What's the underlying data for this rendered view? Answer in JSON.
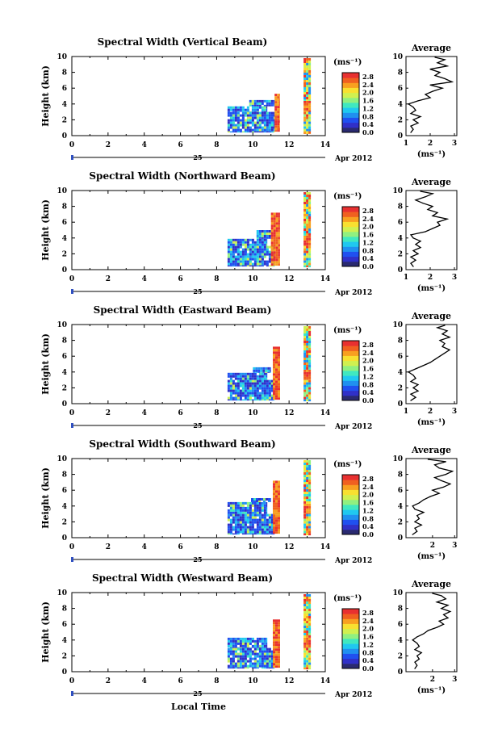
{
  "colors": {
    "scale": [
      "#2a2a70",
      "#3030c8",
      "#2050f0",
      "#2090f0",
      "#20c8f0",
      "#40e8c0",
      "#90f080",
      "#d0f050",
      "#f8e030",
      "#f8a020",
      "#f06020",
      "#e83030"
    ],
    "axis": "#000000",
    "date_marker": "#3050c0"
  },
  "footer": {
    "xaxis_title": "Local Time"
  },
  "chart_data": [
    {
      "type": "heatmap",
      "title": "Spectral Width (Vertical Beam)",
      "ylabel": "Height (km)",
      "xlabel": "Local Time",
      "x_ticks": [
        "0",
        "2",
        "4",
        "6",
        "8",
        "10",
        "12",
        "14"
      ],
      "y_ticks": [
        "0",
        "2",
        "4",
        "6",
        "8",
        "10"
      ],
      "xlim": [
        0,
        14
      ],
      "ylim": [
        0,
        10
      ],
      "date_day": "25",
      "date_month_year": "Apr 2012",
      "colorbar": {
        "unit": "(ms⁻¹)",
        "ticks": [
          "0.0",
          "0.4",
          "0.8",
          "1.2",
          "1.6",
          "2.0",
          "2.4",
          "2.8"
        ],
        "range": [
          0,
          3.0
        ]
      },
      "coverage": [
        {
          "x": [
            8.6,
            11.2
          ],
          "y": [
            0.4,
            3.0
          ],
          "level": "low"
        },
        {
          "x": [
            8.6,
            10.8
          ],
          "y": [
            3.0,
            3.7
          ],
          "level": "low"
        },
        {
          "x": [
            9.8,
            11.2
          ],
          "y": [
            3.7,
            4.5
          ],
          "level": "low"
        },
        {
          "x": [
            11.2,
            11.5
          ],
          "y": [
            0.5,
            5.3
          ],
          "level": "high"
        },
        {
          "x": [
            12.8,
            13.2
          ],
          "y": [
            0.2,
            3.0
          ],
          "level": "mixed"
        },
        {
          "x": [
            12.8,
            13.2
          ],
          "y": [
            3.0,
            4.4
          ],
          "level": "high"
        },
        {
          "x": [
            12.8,
            13.2
          ],
          "y": [
            4.4,
            9.8
          ],
          "level": "mixed"
        }
      ],
      "average_profile": {
        "title": "Average",
        "xlabel": "(ms⁻¹)",
        "x_ticks": [
          "1",
          "2",
          "3"
        ],
        "xlim": [
          1,
          3.1
        ],
        "y_ticks": [
          "0",
          "2",
          "4",
          "6",
          "8",
          "10"
        ],
        "ylim": [
          0,
          10
        ],
        "height": [
          0.4,
          0.8,
          1.2,
          1.6,
          2.0,
          2.4,
          2.8,
          3.2,
          3.6,
          4.0,
          4.4,
          4.8,
          5.2,
          5.6,
          6.0,
          6.4,
          6.8,
          7.2,
          7.6,
          8.0,
          8.4,
          8.8,
          9.2,
          9.6,
          9.9
        ],
        "value": [
          1.2,
          1.3,
          1.2,
          1.5,
          1.3,
          1.6,
          1.2,
          1.4,
          1.3,
          1.1,
          1.5,
          2.0,
          1.8,
          2.1,
          2.5,
          2.0,
          2.9,
          2.6,
          2.2,
          2.4,
          2.0,
          2.7,
          2.3,
          2.6,
          2.2
        ]
      }
    },
    {
      "type": "heatmap",
      "title": "Spectral Width (Northward Beam)",
      "ylabel": "Height (km)",
      "xlabel": "Local Time",
      "x_ticks": [
        "0",
        "2",
        "4",
        "6",
        "8",
        "10",
        "12",
        "14"
      ],
      "y_ticks": [
        "0",
        "2",
        "4",
        "6",
        "8",
        "10"
      ],
      "xlim": [
        0,
        14
      ],
      "ylim": [
        0,
        10
      ],
      "date_day": "25",
      "date_month_year": "Apr 2012",
      "colorbar": {
        "unit": "(ms⁻¹)",
        "ticks": [
          "0.0",
          "0.4",
          "0.8",
          "1.2",
          "1.6",
          "2.0",
          "2.4",
          "2.8"
        ],
        "range": [
          0,
          3.0
        ]
      },
      "coverage": [
        {
          "x": [
            8.6,
            11.2
          ],
          "y": [
            0.4,
            3.0
          ],
          "level": "low"
        },
        {
          "x": [
            8.6,
            10.8
          ],
          "y": [
            3.0,
            3.9
          ],
          "level": "low"
        },
        {
          "x": [
            10.2,
            11.0
          ],
          "y": [
            3.9,
            5.0
          ],
          "level": "low"
        },
        {
          "x": [
            11.0,
            11.5
          ],
          "y": [
            0.5,
            7.2
          ],
          "level": "high"
        },
        {
          "x": [
            12.8,
            13.2
          ],
          "y": [
            0.3,
            3.0
          ],
          "level": "mixed"
        },
        {
          "x": [
            12.8,
            13.2
          ],
          "y": [
            3.0,
            4.3
          ],
          "level": "high"
        },
        {
          "x": [
            12.8,
            13.2
          ],
          "y": [
            4.3,
            9.8
          ],
          "level": "mixed"
        }
      ],
      "average_profile": {
        "title": "Average",
        "xlabel": "(ms⁻¹)",
        "x_ticks": [
          "1",
          "2",
          "3"
        ],
        "xlim": [
          1,
          3.1
        ],
        "y_ticks": [
          "0",
          "2",
          "4",
          "6",
          "8",
          "10"
        ],
        "ylim": [
          0,
          10
        ],
        "height": [
          0.4,
          0.8,
          1.2,
          1.6,
          2.0,
          2.4,
          2.8,
          3.2,
          3.6,
          4.0,
          4.4,
          4.8,
          5.2,
          5.6,
          6.0,
          6.4,
          6.8,
          7.2,
          7.6,
          8.0,
          8.4,
          8.8,
          9.2,
          9.6,
          9.9
        ],
        "value": [
          1.3,
          1.2,
          1.4,
          1.2,
          1.5,
          1.3,
          1.6,
          1.4,
          1.6,
          1.3,
          1.2,
          1.8,
          2.1,
          2.4,
          2.3,
          2.7,
          2.1,
          2.3,
          1.9,
          2.1,
          1.7,
          1.4,
          1.8,
          2.1,
          1.6
        ]
      }
    },
    {
      "type": "heatmap",
      "title": "Spectral Width (Eastward Beam)",
      "ylabel": "Height (km)",
      "xlabel": "Local Time",
      "x_ticks": [
        "0",
        "2",
        "4",
        "6",
        "8",
        "10",
        "12",
        "14"
      ],
      "y_ticks": [
        "0",
        "2",
        "4",
        "6",
        "8",
        "10"
      ],
      "xlim": [
        0,
        14
      ],
      "ylim": [
        0,
        10
      ],
      "date_day": "25",
      "date_month_year": "Apr 2012",
      "colorbar": {
        "unit": "(ms⁻¹)",
        "ticks": [
          "0.0",
          "0.4",
          "0.8",
          "1.2",
          "1.6",
          "2.0",
          "2.4",
          "2.8"
        ],
        "range": [
          0,
          3.0
        ]
      },
      "coverage": [
        {
          "x": [
            8.6,
            11.2
          ],
          "y": [
            0.4,
            3.0
          ],
          "level": "low"
        },
        {
          "x": [
            8.6,
            10.8
          ],
          "y": [
            3.0,
            3.9
          ],
          "level": "low"
        },
        {
          "x": [
            10.0,
            11.0
          ],
          "y": [
            3.9,
            4.6
          ],
          "level": "low"
        },
        {
          "x": [
            11.1,
            11.5
          ],
          "y": [
            0.5,
            7.2
          ],
          "level": "high"
        },
        {
          "x": [
            12.8,
            13.2
          ],
          "y": [
            0.3,
            3.0
          ],
          "level": "mixed"
        },
        {
          "x": [
            12.8,
            13.2
          ],
          "y": [
            3.0,
            4.3
          ],
          "level": "high"
        },
        {
          "x": [
            12.8,
            13.2
          ],
          "y": [
            4.3,
            9.8
          ],
          "level": "mixed"
        }
      ],
      "average_profile": {
        "title": "Average",
        "xlabel": "(ms⁻¹)",
        "x_ticks": [
          "1",
          "2",
          "3"
        ],
        "xlim": [
          1,
          3.1
        ],
        "y_ticks": [
          "0",
          "2",
          "4",
          "6",
          "8",
          "10"
        ],
        "ylim": [
          0,
          10
        ],
        "height": [
          0.4,
          0.8,
          1.2,
          1.6,
          2.0,
          2.4,
          2.8,
          3.2,
          3.6,
          4.0,
          4.4,
          4.8,
          5.2,
          5.6,
          6.0,
          6.4,
          6.8,
          7.2,
          7.6,
          8.0,
          8.4,
          8.8,
          9.2,
          9.6,
          9.9
        ],
        "value": [
          1.2,
          1.4,
          1.2,
          1.5,
          1.3,
          1.5,
          1.2,
          1.4,
          1.3,
          1.1,
          1.4,
          1.7,
          2.0,
          2.2,
          2.4,
          2.6,
          2.8,
          2.5,
          2.6,
          2.4,
          2.8,
          2.5,
          2.7,
          2.3,
          2.6
        ]
      }
    },
    {
      "type": "heatmap",
      "title": "Spectral Width (Southward Beam)",
      "ylabel": "Height (km)",
      "xlabel": "Local Time",
      "x_ticks": [
        "0",
        "2",
        "4",
        "6",
        "8",
        "10",
        "12",
        "14"
      ],
      "y_ticks": [
        "0",
        "2",
        "4",
        "6",
        "8",
        "10"
      ],
      "xlim": [
        0,
        14
      ],
      "ylim": [
        0,
        10
      ],
      "date_day": "25",
      "date_month_year": "Apr 2012",
      "colorbar": {
        "unit": "(ms⁻¹)",
        "ticks": [
          "0.0",
          "0.4",
          "0.8",
          "1.2",
          "1.6",
          "2.0",
          "2.4",
          "2.8"
        ],
        "range": [
          0,
          3.0
        ]
      },
      "coverage": [
        {
          "x": [
            8.6,
            11.2
          ],
          "y": [
            0.4,
            3.0
          ],
          "level": "low"
        },
        {
          "x": [
            8.6,
            10.8
          ],
          "y": [
            3.0,
            4.5
          ],
          "level": "low"
        },
        {
          "x": [
            9.9,
            11.0
          ],
          "y": [
            4.5,
            5.0
          ],
          "level": "low"
        },
        {
          "x": [
            11.1,
            11.5
          ],
          "y": [
            0.5,
            7.2
          ],
          "level": "high"
        },
        {
          "x": [
            12.8,
            13.2
          ],
          "y": [
            0.3,
            3.0
          ],
          "level": "mixed"
        },
        {
          "x": [
            12.8,
            13.2
          ],
          "y": [
            3.0,
            4.3
          ],
          "level": "high"
        },
        {
          "x": [
            12.8,
            13.2
          ],
          "y": [
            4.3,
            9.8
          ],
          "level": "mixed"
        }
      ],
      "average_profile": {
        "title": "Average",
        "xlabel": "(ms⁻¹)",
        "x_ticks": [
          "2",
          "3"
        ],
        "xlim": [
          0.8,
          3.1
        ],
        "y_ticks": [
          "0",
          "2",
          "4",
          "6",
          "8",
          "10"
        ],
        "ylim": [
          0,
          10
        ],
        "height": [
          0.4,
          0.8,
          1.2,
          1.6,
          2.0,
          2.4,
          2.8,
          3.2,
          3.6,
          4.0,
          4.4,
          4.8,
          5.2,
          5.6,
          6.0,
          6.4,
          6.8,
          7.2,
          7.6,
          8.0,
          8.4,
          8.8,
          9.2,
          9.6,
          9.9
        ],
        "value": [
          1.1,
          1.3,
          1.2,
          1.5,
          1.2,
          1.4,
          1.3,
          1.6,
          1.2,
          1.1,
          1.4,
          1.6,
          1.9,
          2.3,
          2.0,
          2.5,
          2.8,
          2.4,
          2.1,
          2.6,
          2.9,
          2.3,
          2.1,
          2.6,
          1.8
        ]
      }
    },
    {
      "type": "heatmap",
      "title": "Spectral Width (Westward Beam)",
      "ylabel": "Height (km)",
      "xlabel": "Local Time",
      "x_ticks": [
        "0",
        "2",
        "4",
        "6",
        "8",
        "10",
        "12",
        "14"
      ],
      "y_ticks": [
        "0",
        "2",
        "4",
        "6",
        "8",
        "10"
      ],
      "xlim": [
        0,
        14
      ],
      "ylim": [
        0,
        10
      ],
      "date_day": "25",
      "date_month_year": "Apr 2012",
      "colorbar": {
        "unit": "(ms⁻¹)",
        "ticks": [
          "0.0",
          "0.4",
          "0.8",
          "1.2",
          "1.6",
          "2.0",
          "2.4",
          "2.8"
        ],
        "range": [
          0,
          3.0
        ]
      },
      "coverage": [
        {
          "x": [
            8.6,
            11.2
          ],
          "y": [
            0.4,
            3.0
          ],
          "level": "low"
        },
        {
          "x": [
            8.6,
            10.8
          ],
          "y": [
            3.0,
            4.3
          ],
          "level": "low"
        },
        {
          "x": [
            11.1,
            11.5
          ],
          "y": [
            0.5,
            6.6
          ],
          "level": "high"
        },
        {
          "x": [
            12.8,
            13.2
          ],
          "y": [
            0.3,
            3.0
          ],
          "level": "mixed"
        },
        {
          "x": [
            12.8,
            13.2
          ],
          "y": [
            3.0,
            4.3
          ],
          "level": "high"
        },
        {
          "x": [
            12.8,
            13.2
          ],
          "y": [
            4.3,
            9.8
          ],
          "level": "mixed"
        }
      ],
      "average_profile": {
        "title": "Average",
        "xlabel": "(ms⁻¹)",
        "x_ticks": [
          "2",
          "3"
        ],
        "xlim": [
          0.8,
          3.1
        ],
        "y_ticks": [
          "0",
          "2",
          "4",
          "6",
          "8",
          "10"
        ],
        "ylim": [
          0,
          10
        ],
        "height": [
          0.4,
          0.8,
          1.2,
          1.6,
          2.0,
          2.4,
          2.8,
          3.2,
          3.6,
          4.0,
          4.4,
          4.8,
          5.2,
          5.6,
          6.0,
          6.4,
          6.8,
          7.2,
          7.6,
          8.0,
          8.4,
          8.8,
          9.2,
          9.6,
          9.9
        ],
        "value": [
          1.2,
          1.3,
          1.2,
          1.4,
          1.3,
          1.5,
          1.2,
          1.4,
          1.3,
          1.1,
          1.3,
          1.6,
          1.8,
          2.2,
          2.5,
          2.3,
          2.7,
          2.5,
          2.8,
          2.4,
          2.7,
          2.2,
          2.6,
          2.4,
          2.0
        ]
      }
    }
  ]
}
